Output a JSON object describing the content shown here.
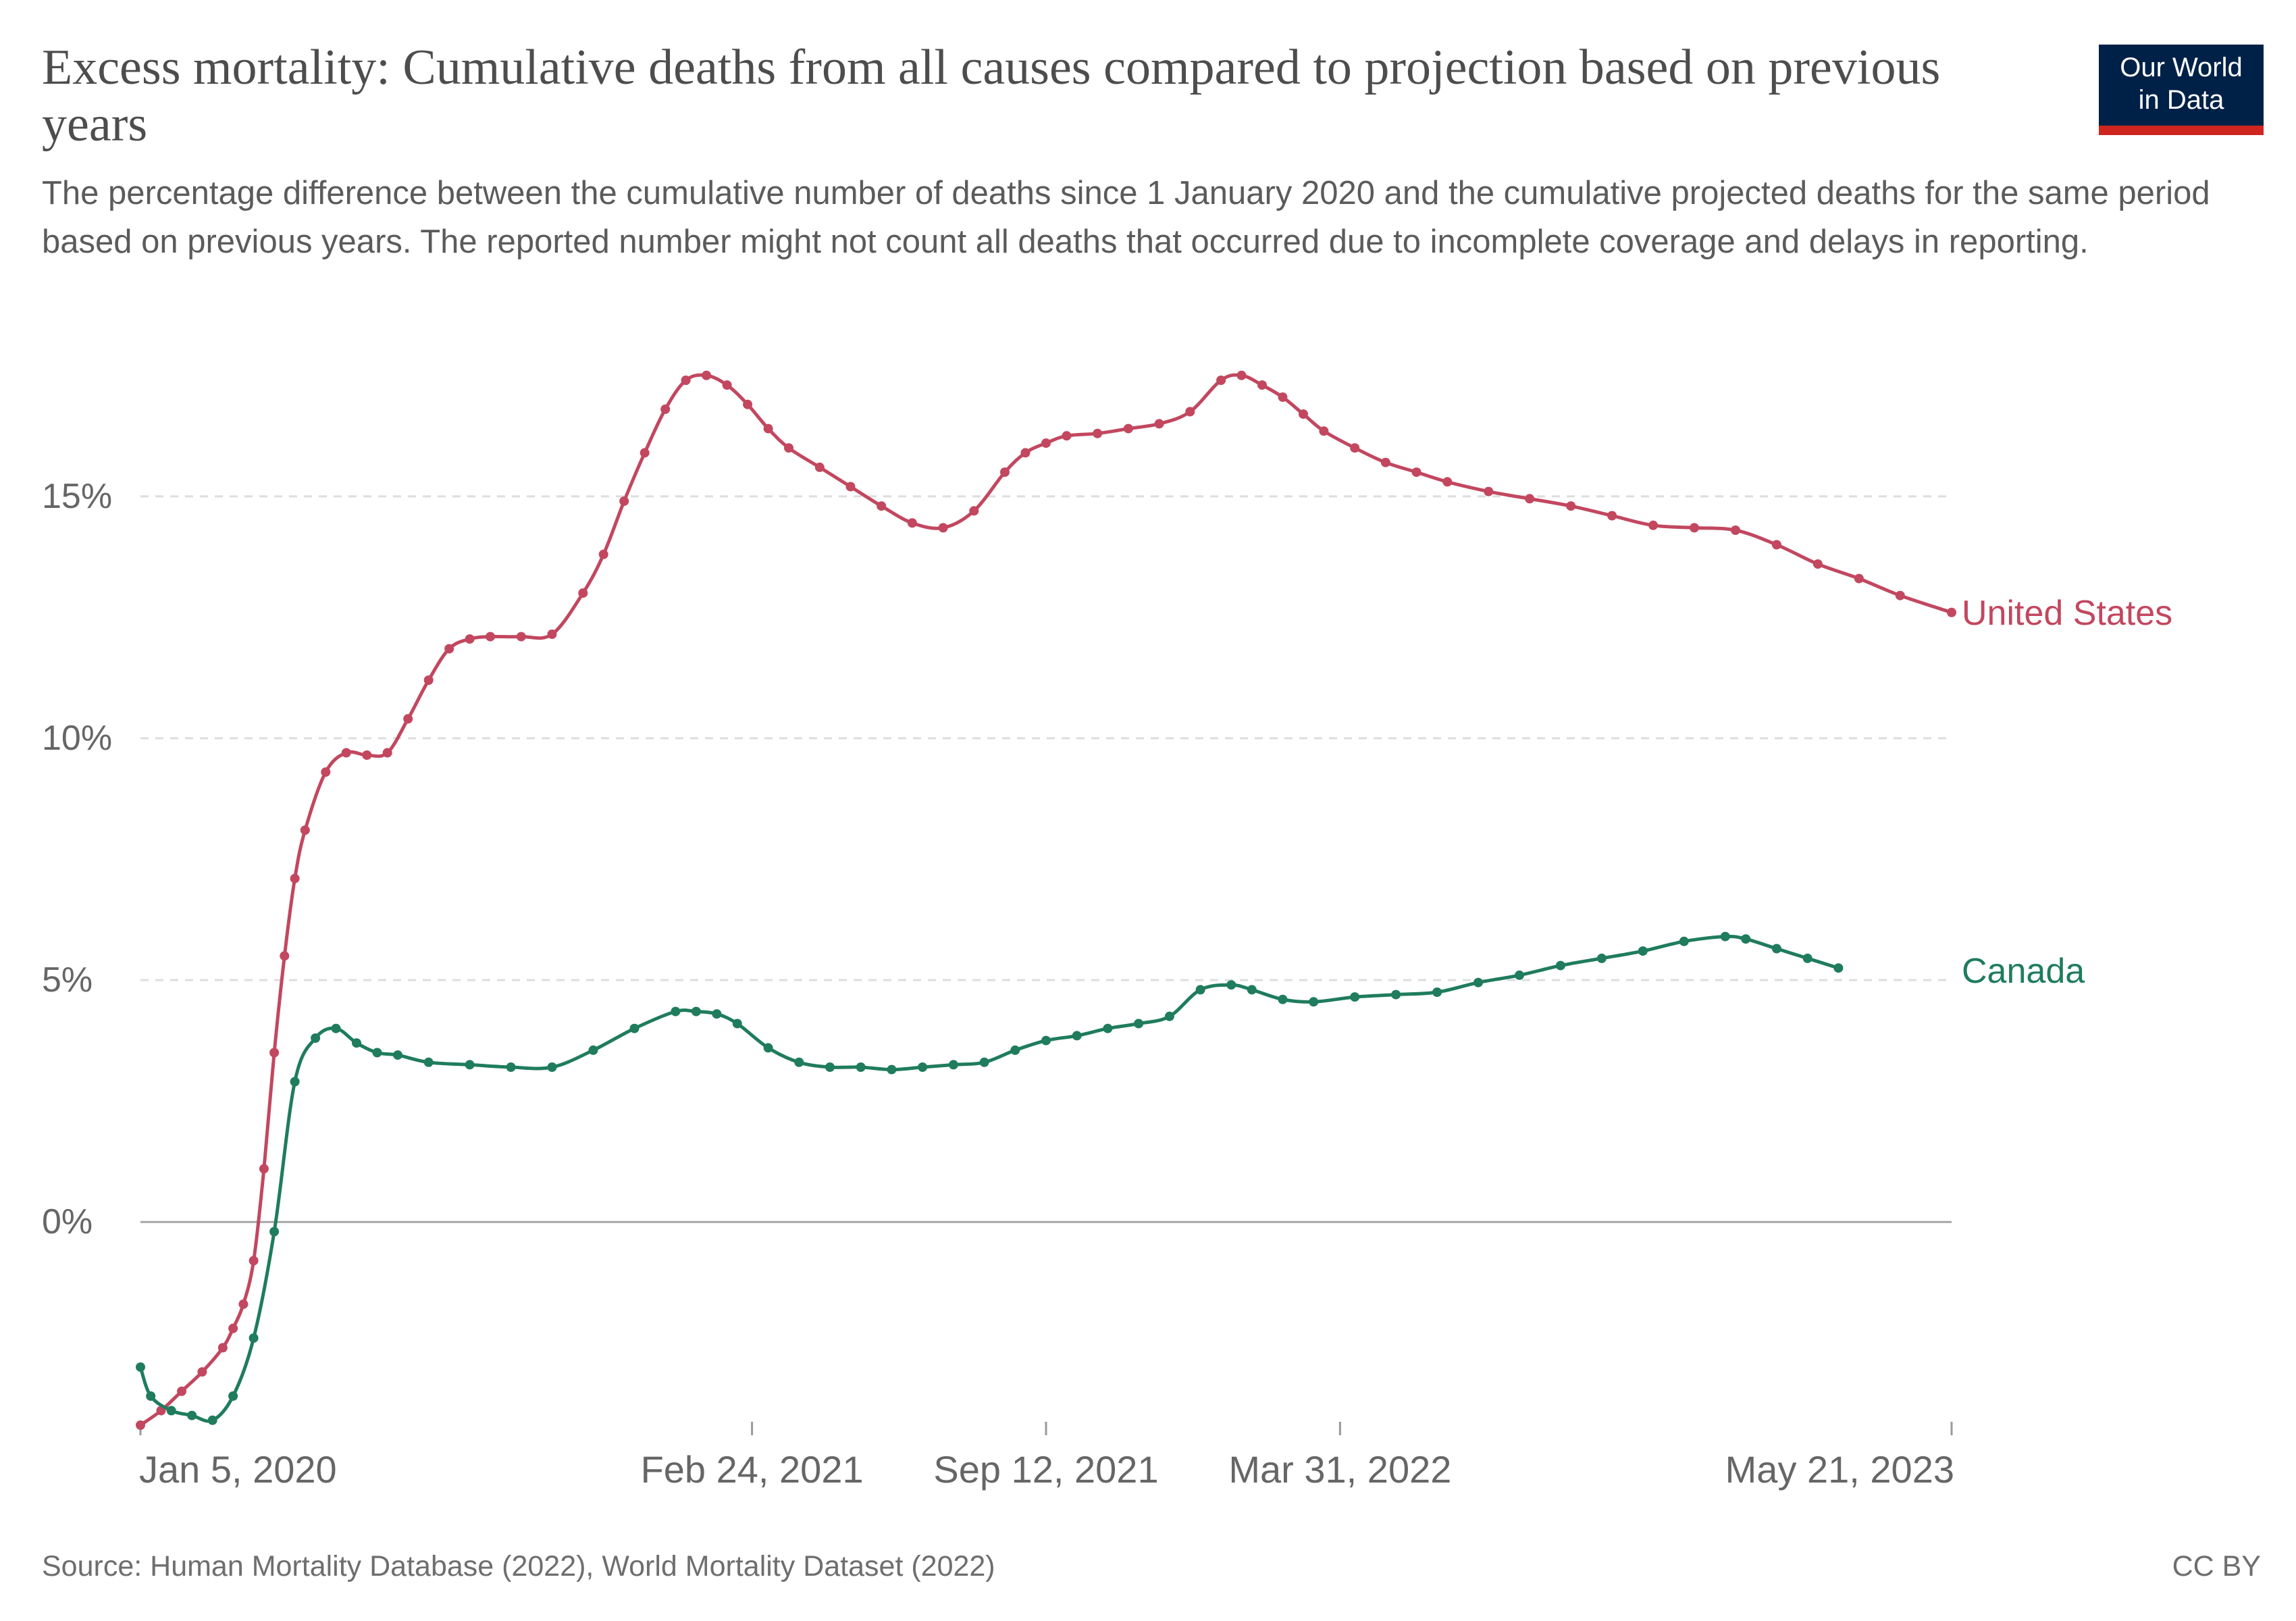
{
  "header": {
    "title": "Excess mortality: Cumulative deaths from all causes compared to projection based on previous years",
    "subtitle": "The percentage difference between the cumulative number of deaths since 1 January 2020 and the cumulative projected deaths for the same period based on previous years. The reported number might not count all deaths that occurred due to incomplete coverage and delays in reporting."
  },
  "logo": {
    "line1": "Our World",
    "line2": "in Data",
    "bg_color": "#002147",
    "accent_color": "#ce261e"
  },
  "footer": {
    "source": "Source: Human Mortality Database (2022), World Mortality Dataset (2022)",
    "license": "CC BY"
  },
  "colors": {
    "united_states": "#c2475f",
    "canada": "#1f7c5c",
    "grid": "#dddddd",
    "zero_line": "#a6a6a6",
    "axis_text": "#666666"
  },
  "chart_data": {
    "type": "line",
    "title": "Excess mortality: Cumulative deaths from all causes compared to projection based on previous years",
    "xlabel": "",
    "ylabel": "",
    "x_type": "date",
    "x_range": [
      "2020-01-05",
      "2023-05-21"
    ],
    "ylim": [
      -4.2,
      18
    ],
    "y_ticks": [
      0,
      5,
      10,
      15
    ],
    "y_tick_labels": [
      "0%",
      "5%",
      "10%",
      "15%"
    ],
    "x_ticks": [
      "2020-01-05",
      "2021-02-24",
      "2021-09-12",
      "2022-03-31",
      "2023-05-21"
    ],
    "x_tick_labels": [
      "Jan 5, 2020",
      "Feb 24, 2021",
      "Sep 12, 2021",
      "Mar 31, 2022",
      "May 21, 2023"
    ],
    "grid": true,
    "legend": "inline labels at line ends",
    "series": [
      {
        "name": "United States",
        "x": [
          "2020-01-05",
          "2020-01-19",
          "2020-02-02",
          "2020-02-16",
          "2020-03-01",
          "2020-03-08",
          "2020-03-15",
          "2020-03-22",
          "2020-03-29",
          "2020-04-05",
          "2020-04-12",
          "2020-04-19",
          "2020-04-26",
          "2020-05-10",
          "2020-05-24",
          "2020-06-07",
          "2020-06-21",
          "2020-07-05",
          "2020-07-19",
          "2020-08-02",
          "2020-08-16",
          "2020-08-30",
          "2020-09-20",
          "2020-10-11",
          "2020-11-01",
          "2020-11-15",
          "2020-11-29",
          "2020-12-13",
          "2020-12-27",
          "2021-01-10",
          "2021-01-24",
          "2021-02-07",
          "2021-02-21",
          "2021-03-07",
          "2021-03-21",
          "2021-04-11",
          "2021-05-02",
          "2021-05-23",
          "2021-06-13",
          "2021-07-04",
          "2021-07-25",
          "2021-08-15",
          "2021-08-29",
          "2021-09-12",
          "2021-09-26",
          "2021-10-17",
          "2021-11-07",
          "2021-11-28",
          "2021-12-19",
          "2022-01-09",
          "2022-01-23",
          "2022-02-06",
          "2022-02-20",
          "2022-03-06",
          "2022-03-20",
          "2022-04-10",
          "2022-05-01",
          "2022-05-22",
          "2022-06-12",
          "2022-07-10",
          "2022-08-07",
          "2022-09-04",
          "2022-10-02",
          "2022-10-30",
          "2022-11-27",
          "2022-12-25",
          "2023-01-22",
          "2023-02-19",
          "2023-03-19",
          "2023-04-16",
          "2023-05-21"
        ],
        "y": [
          -4.2,
          -3.9,
          -3.5,
          -3.1,
          -2.6,
          -2.2,
          -1.7,
          -0.8,
          1.1,
          3.5,
          5.5,
          7.1,
          8.1,
          9.3,
          9.7,
          9.65,
          9.7,
          10.4,
          11.2,
          11.85,
          12.05,
          12.1,
          12.1,
          12.15,
          13.0,
          13.8,
          14.9,
          15.9,
          16.8,
          17.4,
          17.5,
          17.3,
          16.9,
          16.4,
          16.0,
          15.6,
          15.2,
          14.8,
          14.45,
          14.35,
          14.7,
          15.5,
          15.9,
          16.1,
          16.25,
          16.3,
          16.4,
          16.5,
          16.75,
          17.4,
          17.5,
          17.3,
          17.05,
          16.7,
          16.35,
          16.0,
          15.7,
          15.5,
          15.3,
          15.1,
          14.95,
          14.8,
          14.6,
          14.4,
          14.35,
          14.3,
          14.0,
          13.6,
          13.3,
          12.95,
          12.6
        ]
      },
      {
        "name": "Canada",
        "x": [
          "2020-01-05",
          "2020-01-12",
          "2020-01-26",
          "2020-02-09",
          "2020-02-23",
          "2020-03-08",
          "2020-03-22",
          "2020-04-05",
          "2020-04-19",
          "2020-05-03",
          "2020-05-17",
          "2020-05-31",
          "2020-06-14",
          "2020-06-28",
          "2020-07-19",
          "2020-08-16",
          "2020-09-13",
          "2020-10-11",
          "2020-11-08",
          "2020-12-06",
          "2021-01-03",
          "2021-01-17",
          "2021-01-31",
          "2021-02-14",
          "2021-03-07",
          "2021-03-28",
          "2021-04-18",
          "2021-05-09",
          "2021-05-30",
          "2021-06-20",
          "2021-07-11",
          "2021-08-01",
          "2021-08-22",
          "2021-09-12",
          "2021-10-03",
          "2021-10-24",
          "2021-11-14",
          "2021-12-05",
          "2021-12-26",
          "2022-01-16",
          "2022-01-30",
          "2022-02-20",
          "2022-03-13",
          "2022-04-10",
          "2022-05-08",
          "2022-06-05",
          "2022-07-03",
          "2022-07-31",
          "2022-08-28",
          "2022-09-25",
          "2022-10-23",
          "2022-11-20",
          "2022-12-18",
          "2023-01-01",
          "2023-01-22",
          "2023-02-12",
          "2023-03-05"
        ],
        "y": [
          -3.0,
          -3.6,
          -3.9,
          -4.0,
          -4.1,
          -3.6,
          -2.4,
          -0.2,
          2.9,
          3.8,
          4.0,
          3.7,
          3.5,
          3.45,
          3.3,
          3.25,
          3.2,
          3.2,
          3.55,
          4.0,
          4.35,
          4.35,
          4.3,
          4.1,
          3.6,
          3.3,
          3.2,
          3.2,
          3.15,
          3.2,
          3.25,
          3.3,
          3.55,
          3.75,
          3.85,
          4.0,
          4.1,
          4.25,
          4.8,
          4.9,
          4.8,
          4.6,
          4.55,
          4.65,
          4.7,
          4.75,
          4.95,
          5.1,
          5.3,
          5.45,
          5.6,
          5.8,
          5.9,
          5.85,
          5.65,
          5.45,
          5.25
        ]
      }
    ]
  }
}
